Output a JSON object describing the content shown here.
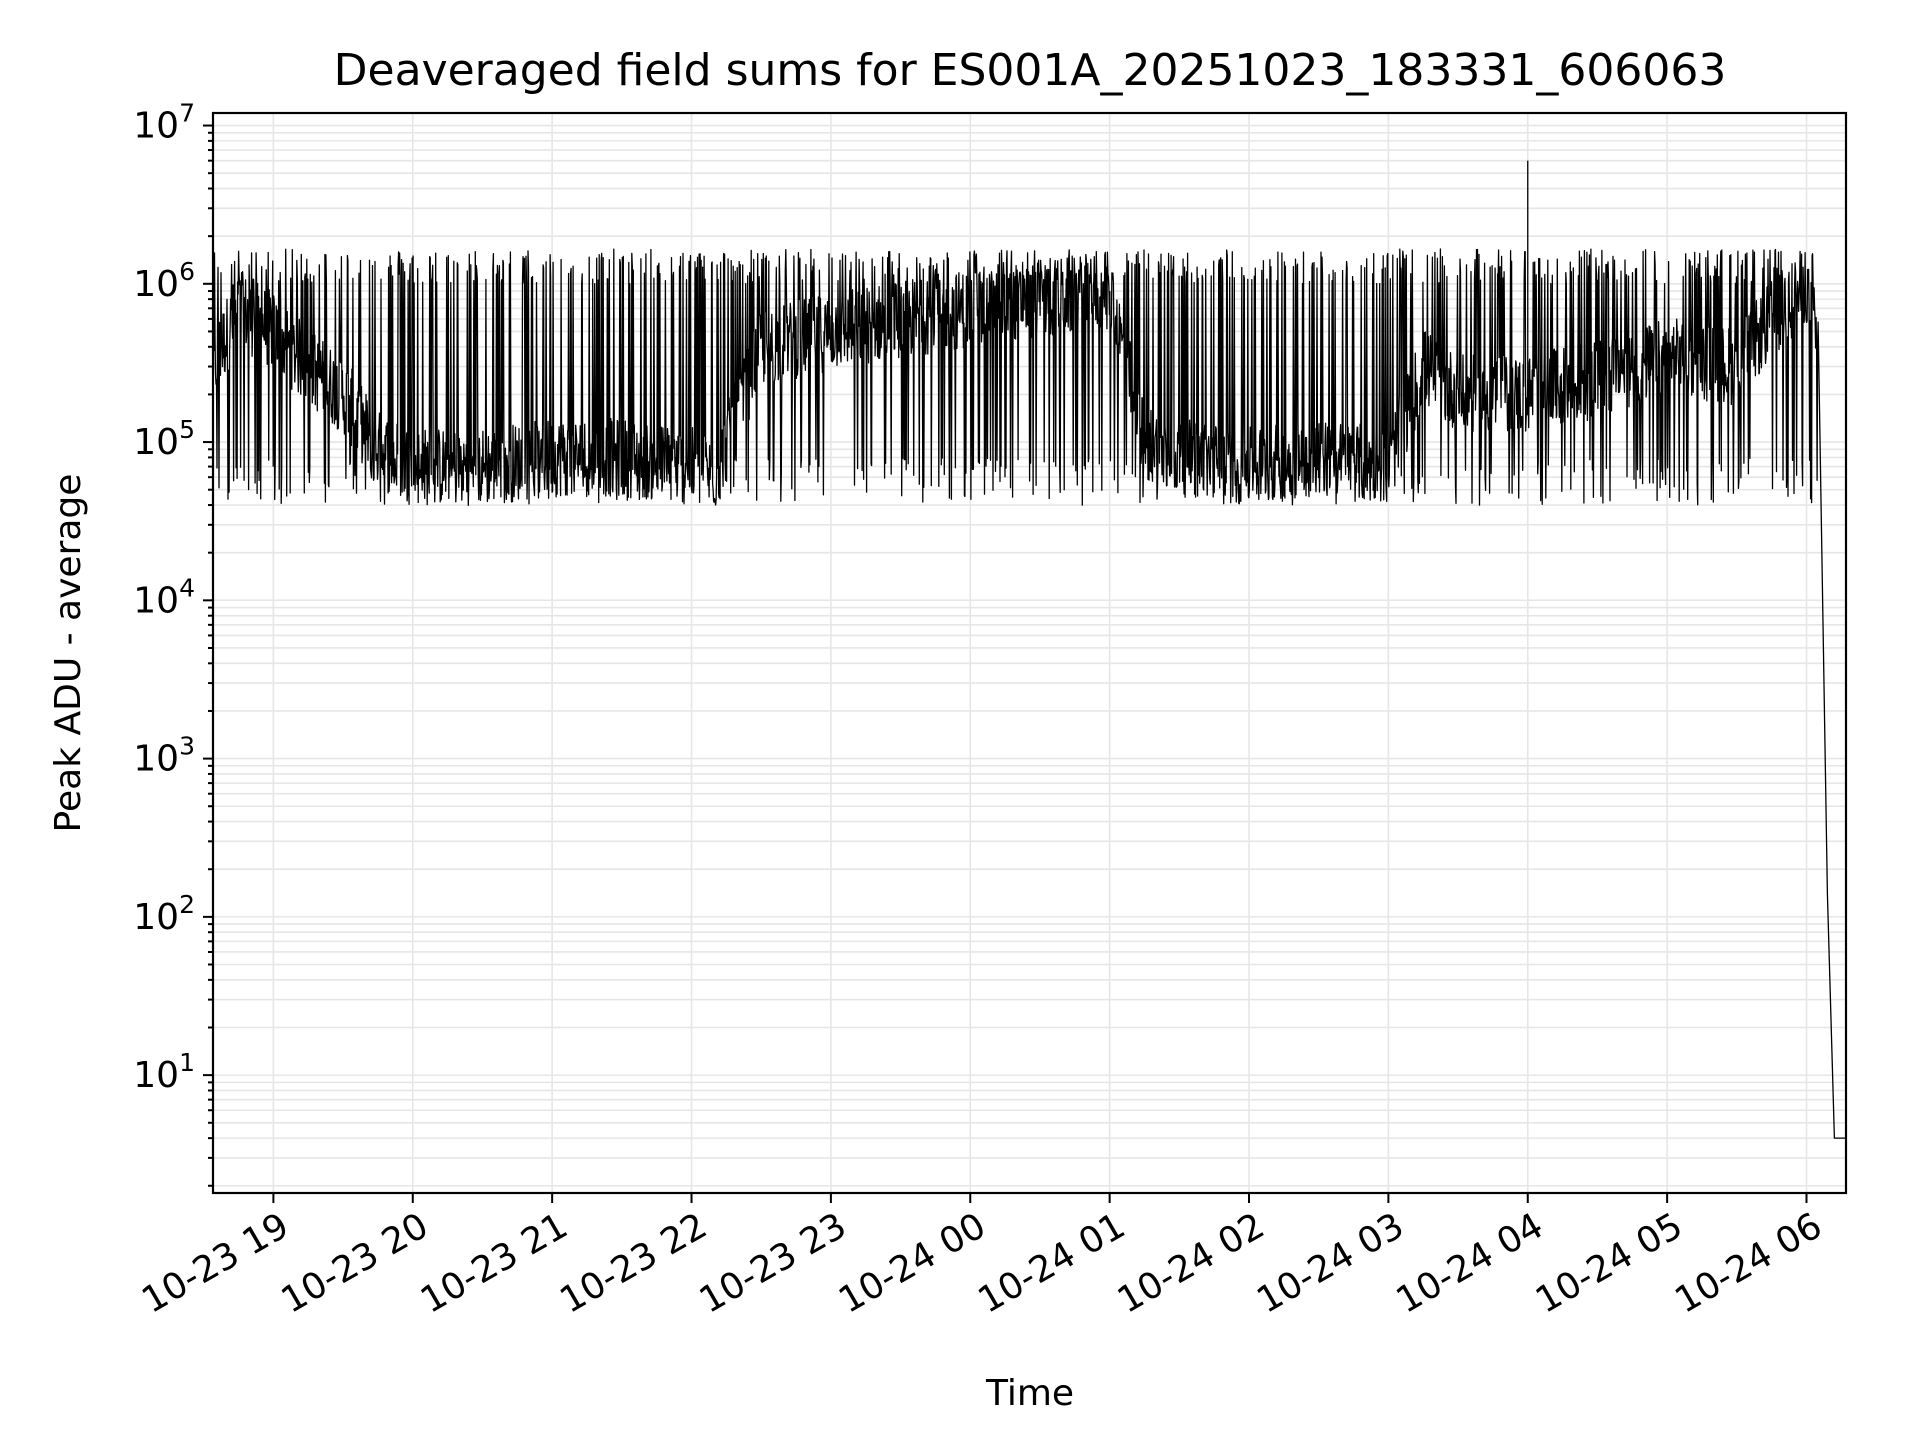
{
  "chart_data": {
    "type": "line",
    "title": "Deaveraged field sums for ES001A_20251023_183331_606063",
    "xlabel": "Time",
    "ylabel": "Peak ADU - average",
    "yscale": "log",
    "ylim": [
      1.8,
      12000000
    ],
    "xlim": [
      "2025-10-23 18:34",
      "2025-10-24 06:17"
    ],
    "grid": true,
    "line_color": "#000000",
    "grid_color": "#e6e6e6",
    "x_ticks": [
      {
        "t": "2025-10-23 19:00",
        "label": "10-23 19"
      },
      {
        "t": "2025-10-23 20:00",
        "label": "10-23 20"
      },
      {
        "t": "2025-10-23 21:00",
        "label": "10-23 21"
      },
      {
        "t": "2025-10-23 22:00",
        "label": "10-23 22"
      },
      {
        "t": "2025-10-23 23:00",
        "label": "10-23 23"
      },
      {
        "t": "2025-10-24 00:00",
        "label": "10-24 00"
      },
      {
        "t": "2025-10-24 01:00",
        "label": "10-24 01"
      },
      {
        "t": "2025-10-24 02:00",
        "label": "10-24 02"
      },
      {
        "t": "2025-10-24 03:00",
        "label": "10-24 03"
      },
      {
        "t": "2025-10-24 04:00",
        "label": "10-24 04"
      },
      {
        "t": "2025-10-24 05:00",
        "label": "10-24 05"
      },
      {
        "t": "2025-10-24 06:00",
        "label": "10-24 06"
      }
    ],
    "y_ticks": [
      {
        "v": 10,
        "base": "10",
        "exp": "1"
      },
      {
        "v": 100,
        "base": "10",
        "exp": "2"
      },
      {
        "v": 1000,
        "base": "10",
        "exp": "3"
      },
      {
        "v": 10000,
        "base": "10",
        "exp": "4"
      },
      {
        "v": 100000,
        "base": "10",
        "exp": "5"
      },
      {
        "v": 1000000,
        "base": "10",
        "exp": "6"
      },
      {
        "v": 10000000,
        "base": "10",
        "exp": "7"
      }
    ],
    "series": [
      {
        "x": [
          "2025-10-23 18:34",
          "2025-10-23 18:45",
          "2025-10-23 19:00",
          "2025-10-23 19:15",
          "2025-10-23 19:30",
          "2025-10-23 19:45",
          "2025-10-23 20:00",
          "2025-10-23 20:30",
          "2025-10-23 21:00",
          "2025-10-23 21:30",
          "2025-10-23 22:00",
          "2025-10-23 22:10",
          "2025-10-23 22:30",
          "2025-10-23 23:00",
          "2025-10-23 23:30",
          "2025-10-24 00:00",
          "2025-10-24 00:30",
          "2025-10-24 01:00",
          "2025-10-24 01:15",
          "2025-10-24 01:30",
          "2025-10-24 02:00",
          "2025-10-24 02:30",
          "2025-10-24 03:00",
          "2025-10-24 03:15",
          "2025-10-24 03:30",
          "2025-10-24 04:00",
          "2025-10-24 04:30",
          "2025-10-24 05:00",
          "2025-10-24 05:30",
          "2025-10-24 05:45",
          "2025-10-24 06:00",
          "2025-10-24 06:05",
          "2025-10-24 06:09",
          "2025-10-24 06:12",
          "2025-10-24 06:17"
        ],
        "y": [
          300000,
          700000,
          500000,
          300000,
          200000,
          90000,
          70000,
          70000,
          80000,
          80000,
          70000,
          60000,
          400000,
          500000,
          600000,
          700000,
          800000,
          900000,
          100000,
          80000,
          70000,
          80000,
          70000,
          300000,
          200000,
          200000,
          250000,
          350000,
          300000,
          600000,
          1000000,
          400000,
          140,
          4,
          4
        ],
        "spike": {
          "t": "2025-10-24 04:00",
          "value": 6000000
        }
      }
    ]
  }
}
